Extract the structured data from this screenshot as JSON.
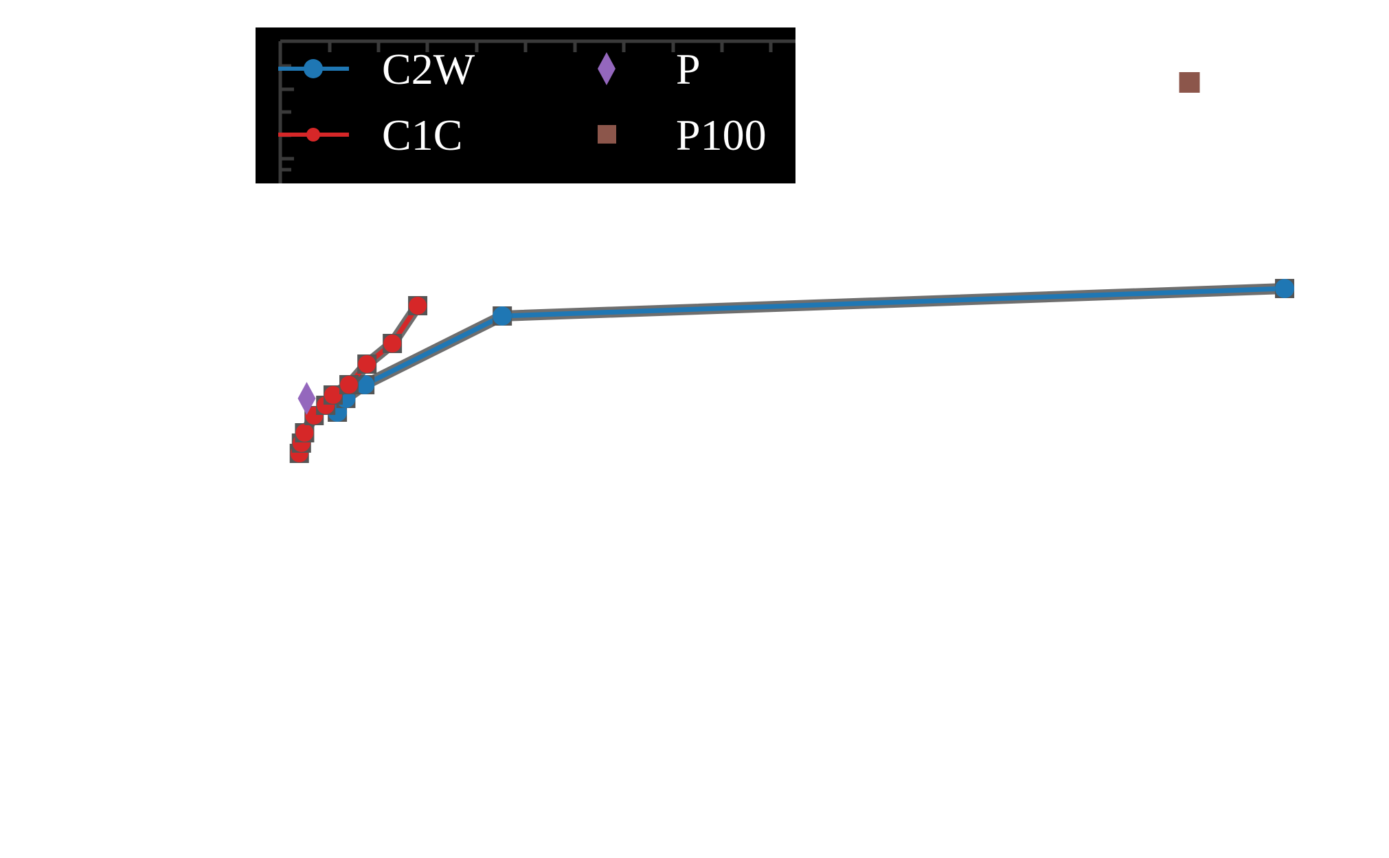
{
  "chart_data": {
    "type": "line",
    "title": "",
    "xlabel": "",
    "ylabel": "",
    "xlim": [
      0,
      100
    ],
    "ylim": [
      0,
      100
    ],
    "grid": false,
    "legend": {
      "placement": "top-left",
      "background": "#000000",
      "text_color": "#ffffff"
    },
    "series": [
      {
        "name": "C2W",
        "type": "line",
        "marker": "circle",
        "color": "#1f77b4",
        "x": [
          5.4,
          6.2,
          8.0,
          21.0,
          95.0
        ],
        "y": [
          46.0,
          48.0,
          50.0,
          60.0,
          64.0
        ]
      },
      {
        "name": "C1C",
        "type": "line",
        "marker": "circle",
        "color": "#d62728",
        "x": [
          1.8,
          2.0,
          2.3,
          3.2,
          4.3,
          5.0,
          6.5,
          8.2,
          10.6,
          13.0
        ],
        "y": [
          40.0,
          41.5,
          43.0,
          45.5,
          47.0,
          48.5,
          50.0,
          53.0,
          56.0,
          61.5
        ]
      },
      {
        "name": "P",
        "type": "scatter",
        "marker": "diamond",
        "color": "#9467bd",
        "x": [
          2.5
        ],
        "y": [
          48.0
        ]
      },
      {
        "name": "P100",
        "type": "scatter",
        "marker": "square",
        "color": "#8c564b",
        "x": [
          86.0
        ],
        "y": [
          94.0
        ]
      }
    ]
  }
}
